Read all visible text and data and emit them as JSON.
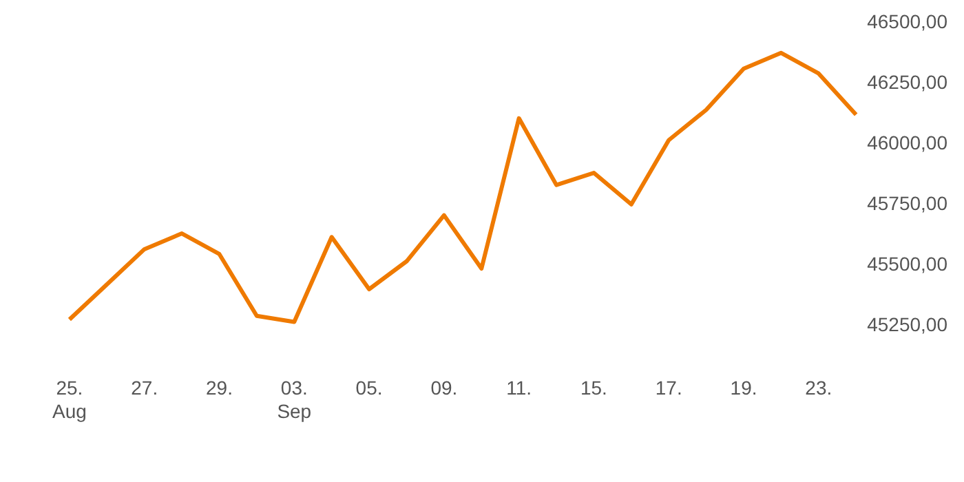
{
  "chart_data": {
    "type": "line",
    "categories": [
      "25.\nAug",
      null,
      "27.",
      null,
      "29.",
      null,
      "03.\nSep",
      null,
      "05.",
      null,
      "09.",
      null,
      "11.",
      null,
      "15.",
      null,
      "17.",
      null,
      "19.",
      null,
      "23.",
      null
    ],
    "series": [
      {
        "color": "#ef7a00",
        "values": [
          45275,
          45420,
          45565,
          45630,
          45545,
          45290,
          45265,
          45615,
          45400,
          45515,
          45705,
          45485,
          46105,
          45830,
          45880,
          45750,
          46015,
          46140,
          46310,
          46375,
          46290,
          46120
        ]
      }
    ],
    "ylim": [
      45250,
      46500
    ],
    "yticks": [
      {
        "value": 45250,
        "label": "45250,00"
      },
      {
        "value": 45500,
        "label": "45500,00"
      },
      {
        "value": 45750,
        "label": "45750,00"
      },
      {
        "value": 46000,
        "label": "46000,00"
      },
      {
        "value": 46250,
        "label": "46250,00"
      },
      {
        "value": 46500,
        "label": "46500,00"
      }
    ],
    "grid": false,
    "legend": false,
    "marker": "none",
    "line_style": "solid"
  }
}
